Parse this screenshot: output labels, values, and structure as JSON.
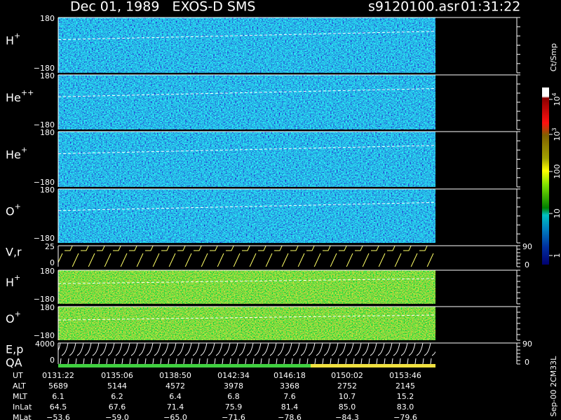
{
  "header": {
    "title": "Dec 01, 1989   EXOS-D SMS",
    "file": "s9120100.asr",
    "time": "01:31:22"
  },
  "panels": [
    {
      "name": "H",
      "sup": "+",
      "ticks": [
        "180",
        "−180"
      ]
    },
    {
      "name": "He",
      "sup": "++",
      "ticks": [
        "180",
        "−180"
      ]
    },
    {
      "name": "He",
      "sup": "+",
      "ticks": [
        "180",
        "−180"
      ]
    },
    {
      "name": "O",
      "sup": "+",
      "ticks": [
        "180",
        "−180"
      ]
    },
    {
      "name": "H",
      "sup": "+",
      "ticks": [
        "180",
        "−180"
      ]
    },
    {
      "name": "O",
      "sup": "+",
      "ticks": [
        "180",
        "−180"
      ]
    }
  ],
  "vr": {
    "label": "V,r",
    "left": [
      "25",
      "0"
    ],
    "right": [
      "90",
      "0"
    ]
  },
  "ep": {
    "label": "E,p",
    "left": [
      "4000",
      "0"
    ],
    "right": [
      "90",
      "0"
    ],
    "qa": "QA"
  },
  "colorbar": {
    "unit": "Ct/Smp",
    "labels": [
      {
        "base": "10",
        "exp": "4"
      },
      {
        "base": "10",
        "exp": "3"
      },
      {
        "base": "100",
        "exp": ""
      },
      {
        "base": "10",
        "exp": ""
      },
      {
        "base": "1",
        "exp": ""
      }
    ]
  },
  "table": {
    "rows": [
      {
        "label": "UT",
        "values": [
          "0131:22",
          "0135:06",
          "0138:50",
          "0142:34",
          "0146:18",
          "0150:02",
          "0153:46"
        ]
      },
      {
        "label": "ALT",
        "values": [
          "5689",
          "5144",
          "4572",
          "3978",
          "3368",
          "2752",
          "2145"
        ]
      },
      {
        "label": "MLT",
        "values": [
          "6.1",
          "6.2",
          "6.4",
          "6.8",
          "7.6",
          "10.7",
          "15.2"
        ]
      },
      {
        "label": "InLat",
        "values": [
          "64.5",
          "67.6",
          "71.4",
          "75.9",
          "81.4",
          "85.0",
          "83.0"
        ]
      },
      {
        "label": "MLat",
        "values": [
          "−53.6",
          "−59.0",
          "−65.0",
          "−71.6",
          "−78.6",
          "−84.3",
          "−79.6"
        ]
      }
    ]
  },
  "footer": "Sep-00 2CM33L"
}
